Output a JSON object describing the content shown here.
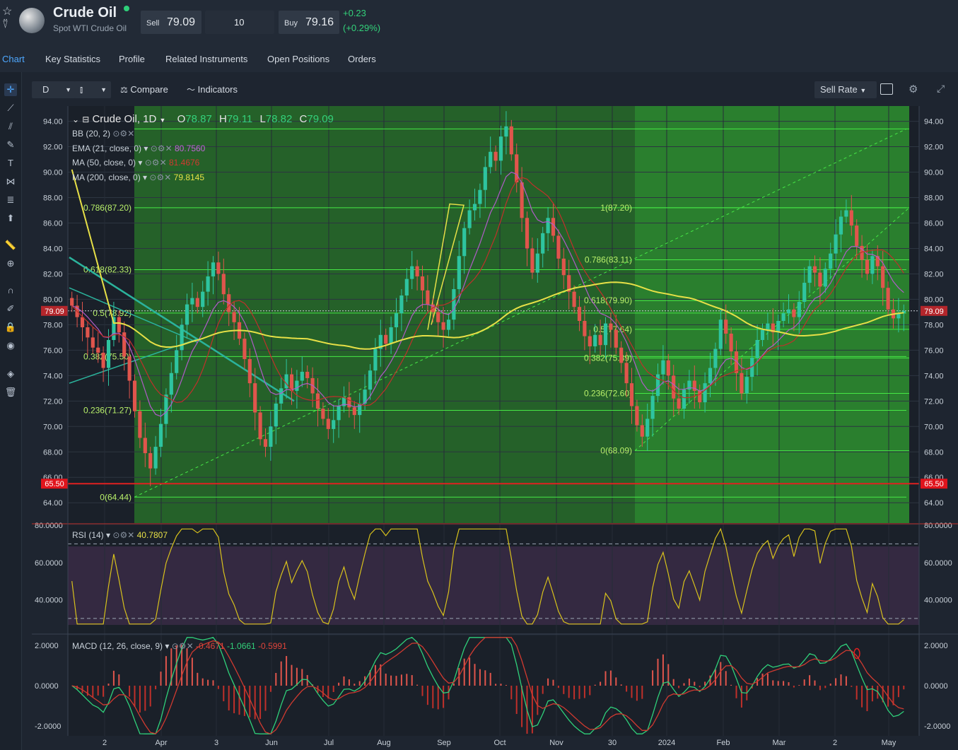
{
  "header": {
    "title": "Crude Oil",
    "subtitle": "Spot WTI Crude Oil",
    "sell_label": "Sell",
    "sell_value": "79.09",
    "quantity": "10",
    "buy_label": "Buy",
    "buy_value": "79.16",
    "change": "+0.23",
    "change_pct": "(+0.29%)",
    "status_color": "#2fd07a"
  },
  "tabs": [
    "Chart",
    "Key Statistics",
    "Profile",
    "Related Instruments",
    "Open Positions",
    "Orders"
  ],
  "toolbar": {
    "interval": "D",
    "compare_label": "Compare",
    "indicators_label": "Indicators",
    "rate_label": "Sell Rate"
  },
  "legend": {
    "symbol": "Crude Oil, 1D",
    "o_label": "O",
    "open": "78.87",
    "h_label": "H",
    "high": "79.11",
    "l_label": "L",
    "low": "78.82",
    "c_label": "C",
    "close": "79.09",
    "indicators": [
      {
        "name": "BB (20, 2)",
        "value": "",
        "color": "#7fd0ff"
      },
      {
        "name": "EMA (21, close, 0)",
        "value": "80.7560",
        "color": "#b05cc8"
      },
      {
        "name": "MA (50, close, 0)",
        "value": "81.4676",
        "color": "#c0302a"
      },
      {
        "name": "MA (200, close, 0)",
        "value": "79.8145",
        "color": "#e7e047"
      }
    ]
  },
  "chart_data": [
    {
      "type": "candlestick",
      "title": "Crude Oil, 1D",
      "x_tick_labels": [
        "2",
        "Apr",
        "3",
        "Jun",
        "Jul",
        "Aug",
        "Sep",
        "Oct",
        "Nov",
        "30",
        "2024",
        "Feb",
        "Mar",
        "2",
        "May"
      ],
      "y_ticks": [
        "94.00",
        "92.00",
        "90.00",
        "88.00",
        "86.00",
        "84.00",
        "82.00",
        "80.00",
        "78.00",
        "76.00",
        "74.00",
        "72.00",
        "70.00",
        "68.00",
        "66.00",
        "64.00"
      ],
      "ylim": [
        62.4,
        95.2
      ],
      "current_price": "79.09",
      "marker_price": "65.50",
      "close_series": [
        79.5,
        78.6,
        77.8,
        77.0,
        76.2,
        75.8,
        74.6,
        76.8,
        78.6,
        77.4,
        75.5,
        73.6,
        71.2,
        69.1,
        67.9,
        66.7,
        68.4,
        70.2,
        72.5,
        74.2,
        76.0,
        78.0,
        79.6,
        80.1,
        79.4,
        80.6,
        81.8,
        82.9,
        82.0,
        80.4,
        79.0,
        78.2,
        76.9,
        75.3,
        73.4,
        71.1,
        69.0,
        68.4,
        70.0,
        71.8,
        73.0,
        74.1,
        72.8,
        73.6,
        74.3,
        73.8,
        72.6,
        71.4,
        70.6,
        69.8,
        70.5,
        71.6,
        72.3,
        71.5,
        70.9,
        71.8,
        72.9,
        74.4,
        76.1,
        77.2,
        76.5,
        77.8,
        78.9,
        80.3,
        81.6,
        82.6,
        81.8,
        80.7,
        79.6,
        79.0,
        78.2,
        77.6,
        78.4,
        80.8,
        83.4,
        85.6,
        87.0,
        87.5,
        88.6,
        90.4,
        91.6,
        90.9,
        92.8,
        93.6,
        91.4,
        89.2,
        86.4,
        84.0,
        82.1,
        83.6,
        85.2,
        86.4,
        85.0,
        83.2,
        81.9,
        80.6,
        79.4,
        78.3,
        77.1,
        76.3,
        77.2,
        76.4,
        78.1,
        77.6,
        76.2,
        75.0,
        73.4,
        71.6,
        70.1,
        69.2,
        70.6,
        72.4,
        74.1,
        75.2,
        74.0,
        72.2,
        71.4,
        72.9,
        73.6,
        72.8,
        71.9,
        73.4,
        74.6,
        76.1,
        78.4,
        77.3,
        75.9,
        74.2,
        72.6,
        73.9,
        75.4,
        76.8,
        77.6,
        78.1,
        77.4,
        78.3,
        78.9,
        79.2,
        78.6,
        79.8,
        81.3,
        82.6,
        82.1,
        81.0,
        82.4,
        83.6,
        85.1,
        86.5,
        87.0,
        85.8,
        84.2,
        83.1,
        82.0,
        83.4,
        82.6,
        80.9,
        79.2,
        78.5,
        78.9,
        79.09
      ],
      "rsi": {
        "name": "RSI (14)",
        "value": "40.7807",
        "ylim": [
          22,
          80
        ],
        "y_ticks": [
          "80.0000",
          "60.0000",
          "40.0000"
        ],
        "levels": [
          70,
          30
        ]
      },
      "macd": {
        "name": "MACD (12, 26, close, 9)",
        "values": [
          "-0.4671",
          "-1.0661",
          "-0.5991"
        ],
        "ylim": [
          -2.5,
          2.5
        ],
        "y_ticks": [
          "2.0000",
          "0.0000",
          "-2.0000"
        ]
      }
    }
  ],
  "fib_left_labels": [
    "0.786(87.20)",
    "0.618(82.33)",
    "0.5(78.92)",
    "0.382(75.50)",
    "0.236(71.27)",
    "0(64.44)"
  ],
  "fib_right_labels": [
    "1(87.20)",
    "0.786(83.11)",
    "0.618(79.90)",
    "0.5(77.64)",
    "0.382(75.39)",
    "0.236(72.60)",
    "0(68.09)"
  ]
}
